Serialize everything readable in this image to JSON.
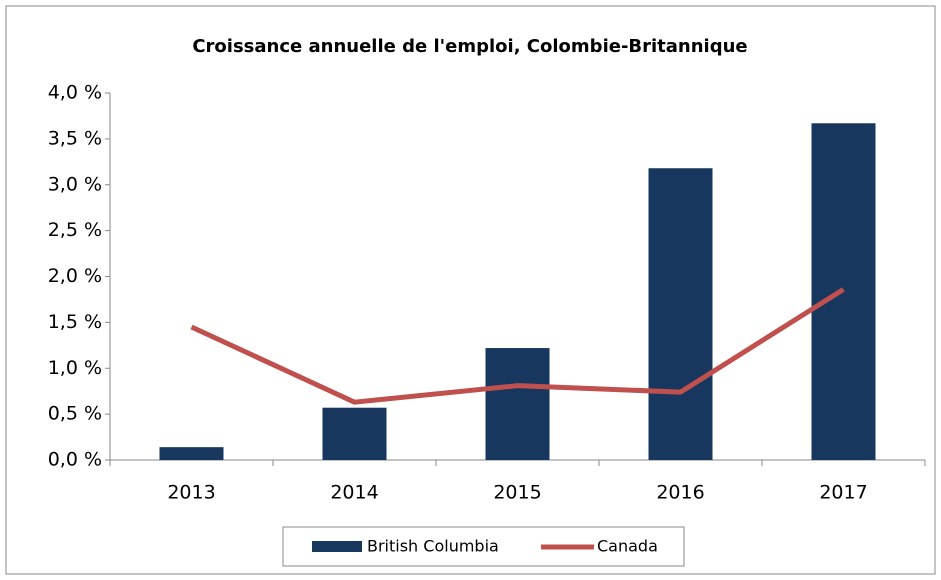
{
  "chart_data": {
    "type": "bar",
    "title": "Croissance annuelle de l'emploi,  Colombie-Britannique",
    "categories": [
      "2013",
      "2014",
      "2015",
      "2016",
      "2017"
    ],
    "series": [
      {
        "name": "British Columbia",
        "type": "bar",
        "color": "#17375e",
        "values": [
          0.14,
          0.57,
          1.22,
          3.18,
          3.67
        ]
      },
      {
        "name": "Canada",
        "type": "line",
        "color": "#c0504d",
        "values": [
          1.45,
          0.63,
          0.81,
          0.74,
          1.86
        ]
      }
    ],
    "ylim": [
      0,
      4
    ],
    "yticks": [
      {
        "value": 0,
        "label": "0,0 %"
      },
      {
        "value": 0.5,
        "label": "0,5 %"
      },
      {
        "value": 1,
        "label": "1,0 %"
      },
      {
        "value": 1.5,
        "label": "1,5 %"
      },
      {
        "value": 2,
        "label": "2,0 %"
      },
      {
        "value": 2.5,
        "label": "2,5 %"
      },
      {
        "value": 3,
        "label": "3,0 %"
      },
      {
        "value": 3.5,
        "label": "3,5 %"
      },
      {
        "value": 4,
        "label": "4,0 %"
      }
    ],
    "grid": false,
    "legend": "bottom"
  }
}
